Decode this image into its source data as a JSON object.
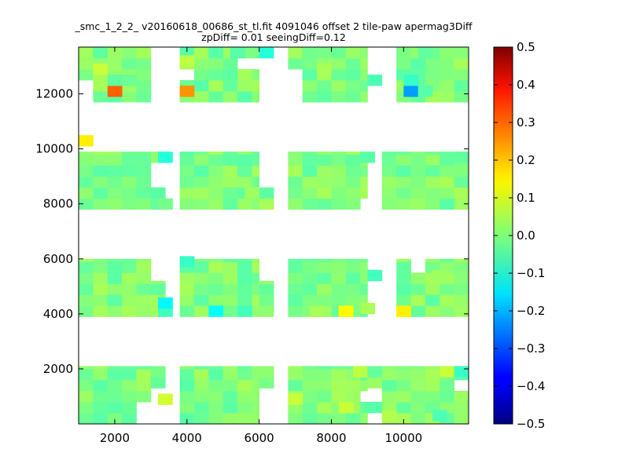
{
  "chart_data": {
    "type": "heatmap",
    "title": "_smc_1_2_2_ v20160618_00686_st_tl.fit 4091046 offset 2 tile-paw apermag3Diff",
    "subtitle": "zpDiff= 0.01 seeingDiff=0.12",
    "xlabel": "",
    "ylabel": "",
    "xlim": [
      1000,
      11800
    ],
    "ylim": [
      0,
      13700
    ],
    "x_ticks": [
      2000,
      4000,
      6000,
      8000,
      10000
    ],
    "x_tick_labels": [
      "2000",
      "4000",
      "6000",
      "8000",
      "10000"
    ],
    "y_ticks": [
      2000,
      4000,
      6000,
      8000,
      10000,
      12000
    ],
    "y_tick_labels": [
      "2000",
      "4000",
      "6000",
      "8000",
      "10000",
      "12000"
    ],
    "colorscale": "jet",
    "colorbar": {
      "range": [
        -0.5,
        0.5
      ],
      "ticks": [
        0.5,
        0.4,
        0.3,
        0.2,
        0.1,
        0.0,
        -0.1,
        -0.2,
        -0.3,
        -0.4,
        -0.5
      ],
      "tick_labels": [
        "0.5",
        "0.4",
        "0.3",
        "0.2",
        "0.1",
        "0.0",
        "−0.1",
        "−0.2",
        "−0.3",
        "−0.4",
        "−0.5"
      ]
    },
    "cell_size": [
      400,
      400
    ],
    "background_value": 0.0,
    "regions": [
      {
        "x": [
          1000,
          3000
        ],
        "y": [
          0,
          2100
        ]
      },
      {
        "x": [
          3000,
          3400
        ],
        "y": [
          1300,
          2100
        ]
      },
      {
        "x": [
          3800,
          6000
        ],
        "y": [
          0,
          2100
        ]
      },
      {
        "x": [
          6000,
          6400
        ],
        "y": [
          1300,
          2100
        ]
      },
      {
        "x": [
          6800,
          9000
        ],
        "y": [
          0,
          2100
        ]
      },
      {
        "x": [
          9000,
          9400
        ],
        "y": [
          1300,
          2100
        ]
      },
      {
        "x": [
          9400,
          11800
        ],
        "y": [
          0,
          2100
        ]
      },
      {
        "x": [
          1000,
          3000
        ],
        "y": [
          3900,
          6000
        ]
      },
      {
        "x": [
          3000,
          3400
        ],
        "y": [
          3900,
          5200
        ]
      },
      {
        "x": [
          3800,
          6000
        ],
        "y": [
          3900,
          6000
        ]
      },
      {
        "x": [
          6000,
          6400
        ],
        "y": [
          3900,
          5200
        ]
      },
      {
        "x": [
          6800,
          9000
        ],
        "y": [
          3900,
          6000
        ]
      },
      {
        "x": [
          9400,
          11800
        ],
        "y": [
          3900,
          6000
        ]
      },
      {
        "x": [
          1000,
          3000
        ],
        "y": [
          7800,
          9900
        ]
      },
      {
        "x": [
          3000,
          3400
        ],
        "y": [
          7800,
          8600
        ]
      },
      {
        "x": [
          3000,
          3400
        ],
        "y": [
          9500,
          9900
        ]
      },
      {
        "x": [
          3800,
          6000
        ],
        "y": [
          7800,
          9900
        ]
      },
      {
        "x": [
          6000,
          6400
        ],
        "y": [
          7800,
          8600
        ]
      },
      {
        "x": [
          6800,
          9000
        ],
        "y": [
          7800,
          9900
        ]
      },
      {
        "x": [
          9400,
          11800
        ],
        "y": [
          7800,
          9900
        ]
      },
      {
        "x": [
          1000,
          3000
        ],
        "y": [
          11700,
          13700
        ]
      },
      {
        "x": [
          3800,
          6000
        ],
        "y": [
          11700,
          13700
        ]
      },
      {
        "x": [
          6800,
          9000
        ],
        "y": [
          11700,
          13700
        ]
      },
      {
        "x": [
          9400,
          11800
        ],
        "y": [
          11700,
          13700
        ]
      },
      {
        "x": [
          1000,
          1400
        ],
        "y": [
          10100,
          10400
        ]
      }
    ],
    "holes": [
      {
        "x": [
          2600,
          3000
        ],
        "y": [
          0,
          700
        ]
      },
      {
        "x": [
          3400,
          3800
        ],
        "y": [
          0,
          700
        ]
      },
      {
        "x": [
          3400,
          3800
        ],
        "y": [
          4400,
          5500
        ]
      },
      {
        "x": [
          6400,
          6800
        ],
        "y": [
          0,
          700
        ]
      },
      {
        "x": [
          8800,
          9000
        ],
        "y": [
          1000,
          1300
        ]
      },
      {
        "x": [
          11400,
          11800
        ],
        "y": [
          1300,
          1700
        ]
      },
      {
        "x": [
          9400,
          10000
        ],
        "y": [
          2100,
          2400
        ]
      },
      {
        "x": [
          9400,
          10000
        ],
        "y": [
          3900,
          4400
        ]
      },
      {
        "x": [
          9400,
          9800
        ],
        "y": [
          4400,
          6000
        ]
      },
      {
        "x": [
          10200,
          10800
        ],
        "y": [
          5500,
          6000
        ]
      },
      {
        "x": [
          6800,
          7200
        ],
        "y": [
          7800,
          8000
        ]
      },
      {
        "x": [
          8800,
          9000
        ],
        "y": [
          7800,
          8200
        ]
      },
      {
        "x": [
          1000,
          1400
        ],
        "y": [
          11700,
          12400
        ]
      },
      {
        "x": [
          3800,
          4200
        ],
        "y": [
          12400,
          13000
        ]
      },
      {
        "x": [
          5600,
          6000
        ],
        "y": [
          12800,
          13200
        ]
      },
      {
        "x": [
          6800,
          7200
        ],
        "y": [
          11700,
          12800
        ]
      },
      {
        "x": [
          6400,
          6800
        ],
        "y": [
          12800,
          13200
        ]
      },
      {
        "x": [
          9400,
          9800
        ],
        "y": [
          11700,
          13700
        ]
      }
    ],
    "cells": [
      {
        "x": 1800,
        "y": 11900,
        "value": 0.28
      },
      {
        "x": 3800,
        "y": 11900,
        "value": 0.23
      },
      {
        "x": 10000,
        "y": 11900,
        "value": -0.22
      },
      {
        "x": 10000,
        "y": 12300,
        "value": -0.07
      },
      {
        "x": 10400,
        "y": 11900,
        "value": -0.04
      },
      {
        "x": 1400,
        "y": 12700,
        "value": 0.07
      },
      {
        "x": 1800,
        "y": 12300,
        "value": -0.03
      },
      {
        "x": 2200,
        "y": 12300,
        "value": -0.02
      },
      {
        "x": 5200,
        "y": 13300,
        "value": -0.04
      },
      {
        "x": 6000,
        "y": 13300,
        "value": -0.09
      },
      {
        "x": 3800,
        "y": 13000,
        "value": 0.06
      },
      {
        "x": 7600,
        "y": 12700,
        "value": 0.04
      },
      {
        "x": 9000,
        "y": 12300,
        "value": -0.05
      },
      {
        "x": 10400,
        "y": 13300,
        "value": -0.03
      },
      {
        "x": 1000,
        "y": 10100,
        "value": 0.14
      },
      {
        "x": 3200,
        "y": 9500,
        "value": -0.09
      },
      {
        "x": 3200,
        "y": 7800,
        "value": -0.01
      },
      {
        "x": 5600,
        "y": 8200,
        "value": 0.03
      },
      {
        "x": 8800,
        "y": 9500,
        "value": -0.04
      },
      {
        "x": 11400,
        "y": 9500,
        "value": -0.03
      },
      {
        "x": 3200,
        "y": 3900,
        "value": -0.06
      },
      {
        "x": 3200,
        "y": 4200,
        "value": -0.13
      },
      {
        "x": 3800,
        "y": 5700,
        "value": -0.07
      },
      {
        "x": 4600,
        "y": 3900,
        "value": -0.12
      },
      {
        "x": 5400,
        "y": 3900,
        "value": -0.06
      },
      {
        "x": 7400,
        "y": 3900,
        "value": 0.04
      },
      {
        "x": 8200,
        "y": 3900,
        "value": 0.13
      },
      {
        "x": 8800,
        "y": 4000,
        "value": 0.04
      },
      {
        "x": 9000,
        "y": 5200,
        "value": -0.06
      },
      {
        "x": 9800,
        "y": 3900,
        "value": 0.14
      },
      {
        "x": 10800,
        "y": 5200,
        "value": 0.03
      },
      {
        "x": 8600,
        "y": 1700,
        "value": 0.06
      },
      {
        "x": 9000,
        "y": 1700,
        "value": -0.03
      },
      {
        "x": 11000,
        "y": 1700,
        "value": 0.07
      },
      {
        "x": 11400,
        "y": 1700,
        "value": -0.07
      },
      {
        "x": 3200,
        "y": 700,
        "value": 0.08
      },
      {
        "x": 6800,
        "y": 700,
        "value": 0.07
      },
      {
        "x": 8200,
        "y": 400,
        "value": 0.07
      },
      {
        "x": 9000,
        "y": 400,
        "value": -0.04
      },
      {
        "x": 9400,
        "y": 100,
        "value": 0.05
      },
      {
        "x": 10800,
        "y": 100,
        "value": -0.05
      }
    ]
  }
}
